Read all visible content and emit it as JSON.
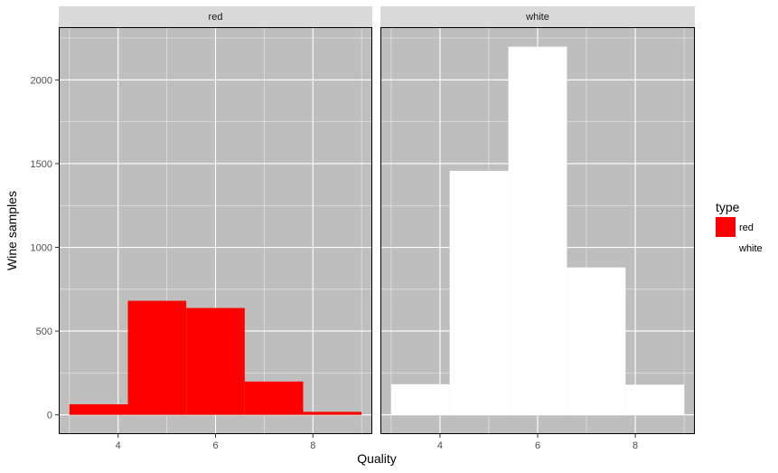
{
  "chart_data": {
    "type": "bar",
    "subtype": "histogram",
    "facet_by": "type",
    "xlabel": "Quality",
    "ylabel": "Wine samples",
    "xlim": [
      2.78,
      9.22
    ],
    "ylim": [
      -115,
      2315
    ],
    "x_ticks": [
      4,
      6,
      8
    ],
    "x_minor_ticks": [
      3,
      5,
      7,
      9
    ],
    "y_ticks": [
      0,
      500,
      1000,
      1500,
      2000
    ],
    "y_minor_ticks": [
      250,
      750,
      1250,
      1750,
      2250
    ],
    "grid": true,
    "panel_background": "#bebebe",
    "strip_background": "#d9d9d9",
    "legend": {
      "title": "type",
      "position": "right",
      "items": [
        {
          "label": "red",
          "color": "#ff0000"
        },
        {
          "label": "white",
          "color": "#ffffff"
        }
      ]
    },
    "panels": [
      {
        "label": "red",
        "color": "#ff0000",
        "bins": [
          {
            "x0": 3.0,
            "x1": 4.2,
            "count": 63
          },
          {
            "x0": 4.2,
            "x1": 5.4,
            "count": 681
          },
          {
            "x0": 5.4,
            "x1": 6.6,
            "count": 638
          },
          {
            "x0": 6.6,
            "x1": 7.8,
            "count": 199
          },
          {
            "x0": 7.8,
            "x1": 9.0,
            "count": 18
          }
        ]
      },
      {
        "label": "white",
        "color": "#ffffff",
        "bins": [
          {
            "x0": 3.0,
            "x1": 4.2,
            "count": 183
          },
          {
            "x0": 4.2,
            "x1": 5.4,
            "count": 1457
          },
          {
            "x0": 5.4,
            "x1": 6.6,
            "count": 2198
          },
          {
            "x0": 6.6,
            "x1": 7.8,
            "count": 880
          },
          {
            "x0": 7.8,
            "x1": 9.0,
            "count": 180
          }
        ]
      }
    ]
  }
}
